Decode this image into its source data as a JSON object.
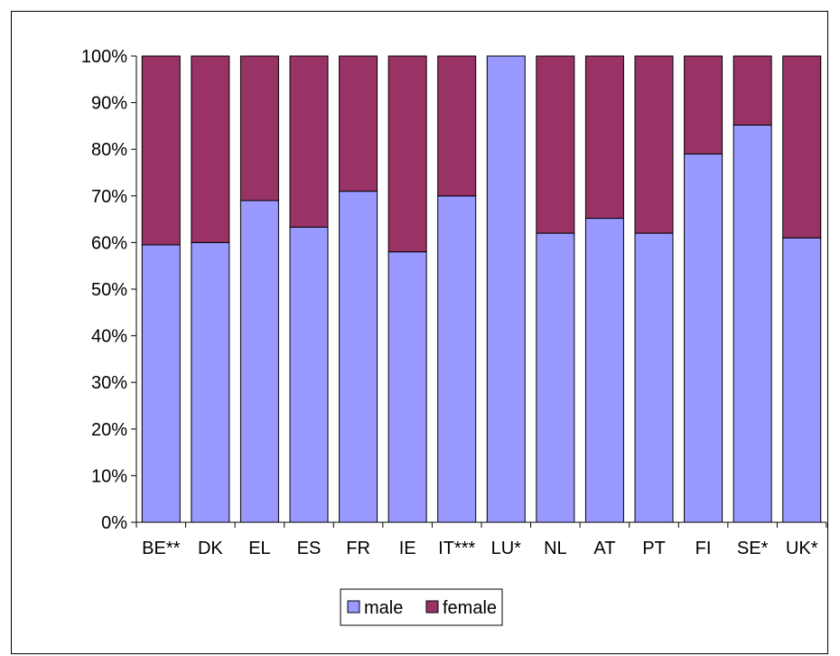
{
  "chart_data": {
    "type": "bar",
    "stacked": true,
    "normalized": true,
    "categories": [
      "BE**",
      "DK",
      "EL",
      "ES",
      "FR",
      "IE",
      "IT***",
      "LU*",
      "NL",
      "AT",
      "PT",
      "FI",
      "SE*",
      "UK*"
    ],
    "series": [
      {
        "name": "male",
        "values": [
          59.5,
          60,
          69,
          63.3,
          71,
          58,
          70,
          100,
          62,
          65.2,
          62,
          79,
          85.2,
          61
        ]
      },
      {
        "name": "female",
        "values": [
          40.5,
          40,
          31,
          36.7,
          29,
          42,
          30,
          0,
          38,
          34.8,
          38,
          21,
          14.8,
          39
        ]
      }
    ],
    "colors": {
      "male": "#9999ff",
      "female": "#993366"
    },
    "ylim": [
      0,
      100
    ],
    "yticks": [
      "0%",
      "10%",
      "20%",
      "30%",
      "40%",
      "50%",
      "60%",
      "70%",
      "80%",
      "90%",
      "100%"
    ],
    "xlabel": "",
    "ylabel": "",
    "title": "",
    "grid": false,
    "legend": {
      "position": "bottom",
      "entries": [
        "male",
        "female"
      ]
    }
  }
}
